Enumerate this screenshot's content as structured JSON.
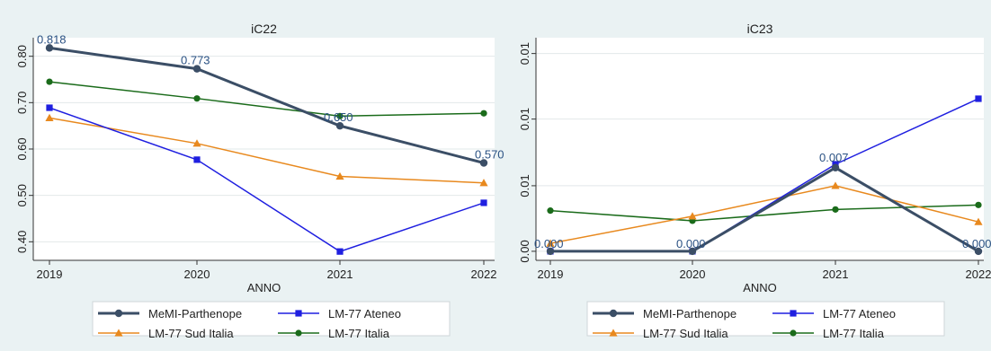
{
  "chart_data": [
    {
      "type": "line",
      "title": "iC22",
      "xlabel": "ANNO",
      "ylabel": "",
      "x": [
        2019,
        2020,
        2021,
        2022
      ],
      "xticks": [
        "2019",
        "2020",
        "2021",
        "2022"
      ],
      "ylim": [
        0.36,
        0.84
      ],
      "yticks": [
        0.4,
        0.5,
        0.6,
        0.7,
        0.8
      ],
      "ytick_labels": [
        "0.40",
        "0.50",
        "0.60",
        "0.70",
        "0.80"
      ],
      "grid": true,
      "legend": "bottom",
      "series": [
        {
          "name": "MeMI-Parthenope",
          "values": [
            0.818,
            0.773,
            0.65,
            0.57
          ],
          "color": "#3b4e66",
          "marker": "circle",
          "labels": [
            "0.818",
            "0.773",
            "0.650",
            "0.570"
          ]
        },
        {
          "name": "LM-77 Ateneo",
          "values": [
            0.689,
            0.577,
            0.379,
            0.484
          ],
          "color": "#1f1fe0",
          "marker": "square"
        },
        {
          "name": "LM-77 Sud Italia",
          "values": [
            0.667,
            0.612,
            0.541,
            0.527
          ],
          "color": "#e8891e",
          "marker": "triangle"
        },
        {
          "name": "LM-77 Italia",
          "values": [
            0.745,
            0.709,
            0.671,
            0.677
          ],
          "color": "#1a6b1a",
          "marker": "circle"
        }
      ]
    },
    {
      "type": "line",
      "title": "iC23",
      "xlabel": "ANNO",
      "ylabel": "",
      "x": [
        2019,
        2020,
        2021,
        2022
      ],
      "xticks": [
        "2019",
        "2020",
        "2021",
        "2022"
      ],
      "ylim": [
        -0.0008,
        0.0189
      ],
      "yticks": [
        0.0,
        0.0058,
        0.0117,
        0.0175
      ],
      "ytick_labels": [
        "0.00",
        "0.01",
        "0.01",
        "0.01"
      ],
      "grid": true,
      "legend": "bottom",
      "series": [
        {
          "name": "MeMI-Parthenope",
          "values": [
            0.0,
            0.0,
            0.0074,
            0.0
          ],
          "color": "#3b4e66",
          "marker": "circle",
          "labels": [
            "0.000",
            "0.000",
            "0.007",
            "0.000"
          ]
        },
        {
          "name": "LM-77 Ateneo",
          "values": [
            0.0,
            0.0,
            0.0077,
            0.0135
          ],
          "color": "#1f1fe0",
          "marker": "square"
        },
        {
          "name": "LM-77 Sud Italia",
          "values": [
            0.0007,
            0.0031,
            0.0058,
            0.0026
          ],
          "color": "#e8891e",
          "marker": "triangle"
        },
        {
          "name": "LM-77 Italia",
          "values": [
            0.0036,
            0.0027,
            0.0037,
            0.0041
          ],
          "color": "#1a6b1a",
          "marker": "circle"
        }
      ]
    }
  ]
}
